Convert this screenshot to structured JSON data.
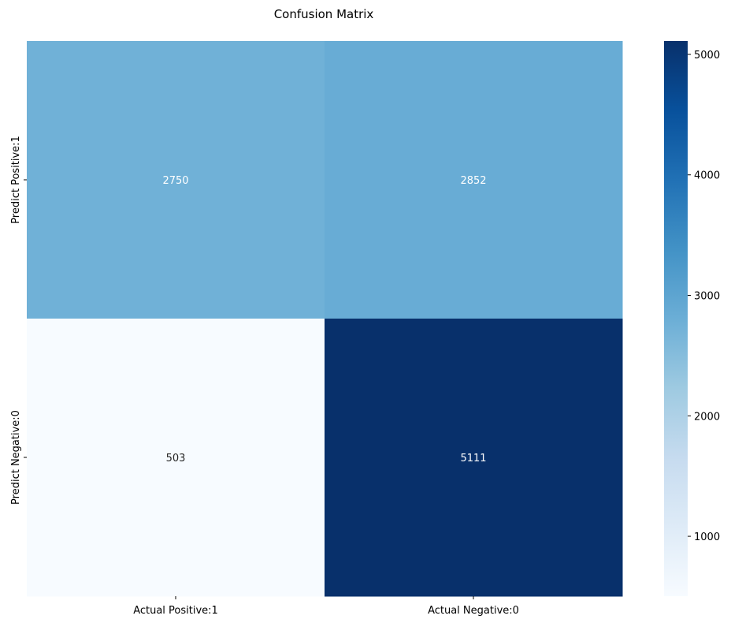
{
  "chart_data": {
    "type": "heatmap",
    "title": "Confusion Matrix",
    "x_categories": [
      "Actual Positive:1",
      "Actual Negative:0"
    ],
    "y_categories": [
      "Predict Positive:1",
      "Predict Negative:0"
    ],
    "values": [
      [
        2750,
        2852
      ],
      [
        503,
        5111
      ]
    ],
    "colormap": "Blues",
    "color_range": [
      503,
      5111
    ],
    "colorbar_ticks": [
      1000,
      2000,
      3000,
      4000,
      5000
    ],
    "colorbar_tick_labels": [
      "1000",
      "2000",
      "3000",
      "4000",
      "5000"
    ],
    "colors": {
      "low": "#f7fbff",
      "high": "#08306b"
    }
  }
}
